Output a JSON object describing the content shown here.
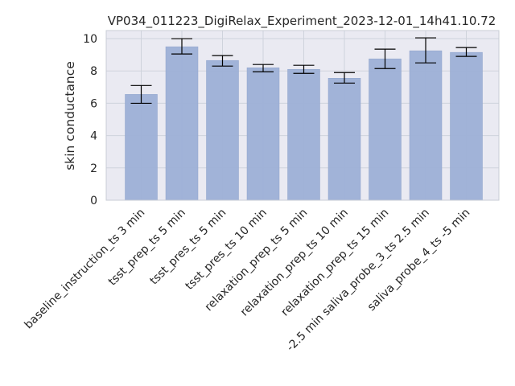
{
  "chart_data": {
    "type": "bar",
    "title": "VP034_011223_DigiRelax_Experiment_2023-12-01_14h41.10.72",
    "xlabel": "",
    "ylabel": "skin conductance",
    "ylim": [
      0,
      10.5
    ],
    "yticks": [
      0,
      2,
      4,
      6,
      8,
      10
    ],
    "grid": true,
    "legend": "none",
    "categories": [
      "baseline_instruction_ts 3 min",
      "tsst_prep_ts 5 min",
      "tsst_pres_ts 5 min",
      "tsst_pres_ts 10 min",
      "relaxation_prep_ts 5 min",
      "relaxation_prep_ts 10 min",
      "relaxation_prep_ts 15 min",
      "-2.5 min saliva_probe_3_ts 2.5 min",
      "saliva_probe_4_ts -5 min"
    ],
    "values": [
      6.55,
      9.5,
      8.65,
      8.2,
      8.1,
      7.55,
      8.75,
      9.25,
      9.15
    ],
    "error_low": [
      6.0,
      9.05,
      8.3,
      7.95,
      7.85,
      7.25,
      8.15,
      8.5,
      8.9
    ],
    "error_high": [
      7.1,
      10.0,
      8.95,
      8.4,
      8.35,
      7.9,
      9.35,
      10.05,
      9.45
    ],
    "colors": {
      "bar": "#9db0d6",
      "bar_edge": "#8fa3cc",
      "plot_bg": "#eaeaf2",
      "grid": "#cfd3dc",
      "error": "#000000",
      "frame": "#c8ccd6"
    }
  }
}
